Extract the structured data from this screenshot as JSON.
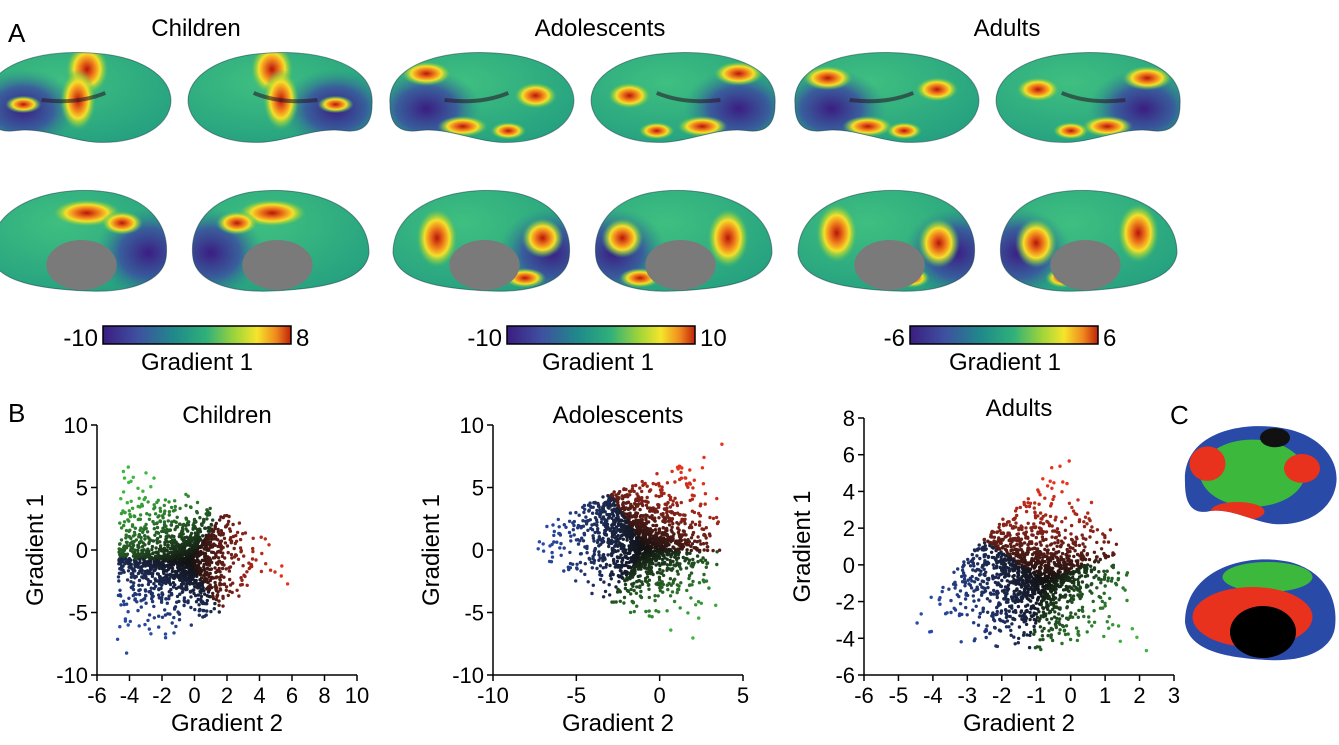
{
  "panel_labels": {
    "a": "A",
    "b": "B",
    "c": "C"
  },
  "groups": [
    {
      "name": "Children",
      "cbar_min": "-10",
      "cbar_max": "8",
      "cbar_label": "Gradient 1"
    },
    {
      "name": "Adolescents",
      "cbar_min": "-10",
      "cbar_max": "10",
      "cbar_label": "Gradient 1"
    },
    {
      "name": "Adults",
      "cbar_min": "-6",
      "cbar_max": "6",
      "cbar_label": "Gradient 1"
    }
  ],
  "colormap": [
    "#3b1d82",
    "#3f4fa0",
    "#1f8a8a",
    "#2fb07a",
    "#9ed43a",
    "#f5e52a",
    "#f08a1e",
    "#c0220a"
  ],
  "chart_data": [
    {
      "type": "scatter",
      "title": "Children",
      "xlabel": "Gradient 2",
      "ylabel": "Gradient 1",
      "xlim": [
        -6,
        10
      ],
      "ylim": [
        -10,
        10
      ],
      "xticks": [
        "-6",
        "-4",
        "-2",
        "0",
        "2",
        "4",
        "6",
        "8",
        "10"
      ],
      "yticks": [
        "-10",
        "-5",
        "0",
        "5",
        "10"
      ],
      "shape_vertices": {
        "green": [
          -4.5,
          7.5
        ],
        "blue": [
          -4.8,
          -8.8
        ],
        "red": [
          8.2,
          -1.3
        ]
      }
    },
    {
      "type": "scatter",
      "title": "Adolescents",
      "xlabel": "Gradient 2",
      "ylabel": "Gradient 1",
      "xlim": [
        -10,
        5
      ],
      "ylim": [
        -10,
        10
      ],
      "xticks": [
        "-10",
        "-5",
        "0",
        "5"
      ],
      "yticks": [
        "-10",
        "-5",
        "0",
        "5",
        "10"
      ],
      "shape_vertices": {
        "blue": [
          -9.8,
          0.5
        ],
        "red": [
          3.8,
          8.5
        ],
        "green": [
          3.5,
          -8.8
        ]
      }
    },
    {
      "type": "scatter",
      "title": "Adults",
      "xlabel": "Gradient 2",
      "ylabel": "Gradient 1",
      "xlim": [
        -6,
        3
      ],
      "ylim": [
        -6,
        8
      ],
      "xticks": [
        "-6",
        "-5",
        "-4",
        "-3",
        "-2",
        "-1",
        "0",
        "1",
        "2",
        "3"
      ],
      "yticks": [
        "-6",
        "-4",
        "-2",
        "0",
        "2",
        "4",
        "6",
        "8"
      ],
      "shape_vertices": {
        "red": [
          0.2,
          6.8
        ],
        "blue": [
          -5.3,
          -4.1
        ],
        "green": [
          2.9,
          -5.3
        ]
      }
    }
  ],
  "cluster_colors": {
    "blue": "#2a4aa8",
    "red": "#e8321e",
    "green": "#3cb83c",
    "mid": "#111111"
  },
  "cortex_color_gray": "#7a7a7a"
}
